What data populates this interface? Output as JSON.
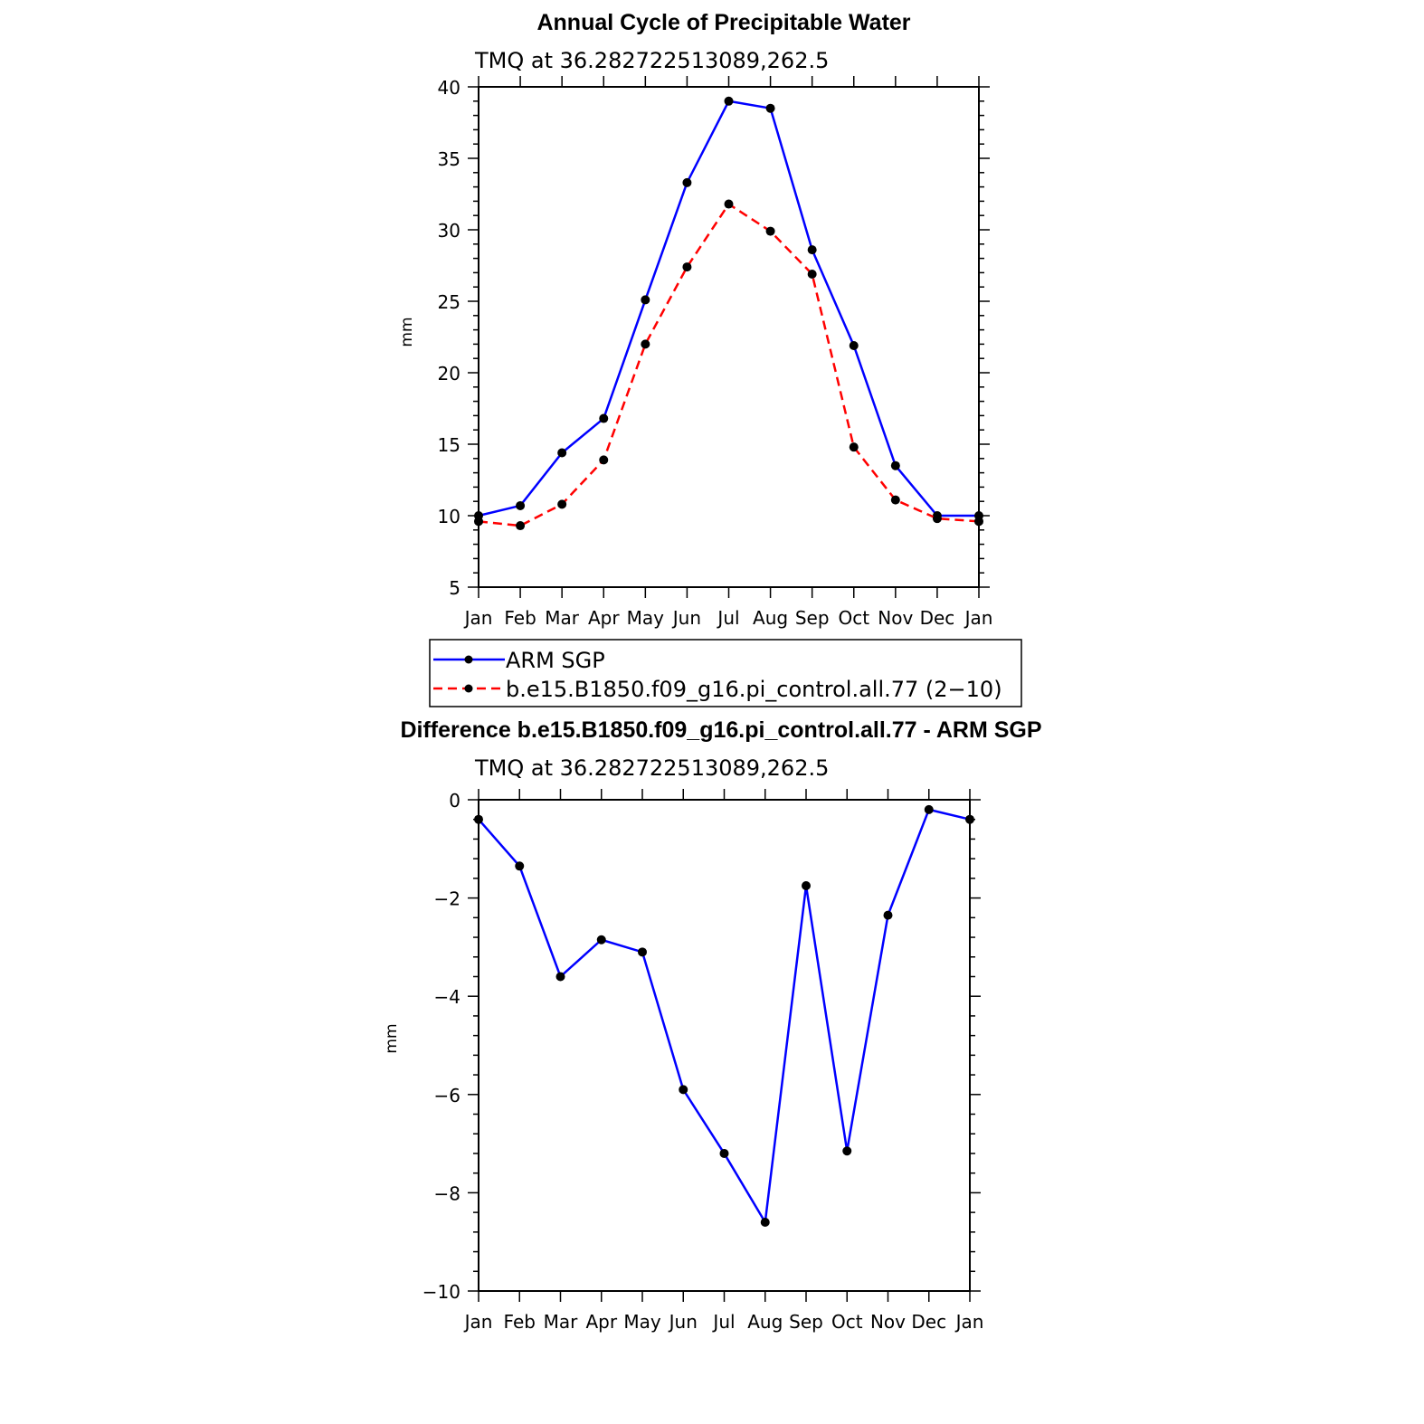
{
  "chart_data": [
    {
      "type": "line",
      "title": "Annual Cycle of Precipitable Water",
      "subtitle": "TMQ at 36.282722513089,262.5",
      "xlabel": "",
      "ylabel": "mm",
      "categories": [
        "Jan",
        "Feb",
        "Mar",
        "Apr",
        "May",
        "Jun",
        "Jul",
        "Aug",
        "Sep",
        "Oct",
        "Nov",
        "Dec",
        "Jan"
      ],
      "ylim": [
        5,
        40
      ],
      "yticks": [
        5,
        10,
        15,
        20,
        25,
        30,
        35,
        40
      ],
      "series": [
        {
          "name": "ARM SGP",
          "color": "#0000ff",
          "dash": "solid",
          "values": [
            10.0,
            10.7,
            14.4,
            16.8,
            25.1,
            33.3,
            39.0,
            38.5,
            28.6,
            21.9,
            13.5,
            10.0,
            10.0
          ]
        },
        {
          "name": "b.e15.B1850.f09_g16.pi_control.all.77 (2−10)",
          "color": "#ff0000",
          "dash": "dashed",
          "values": [
            9.6,
            9.3,
            10.8,
            13.9,
            22.0,
            27.4,
            31.8,
            29.9,
            26.9,
            14.8,
            11.1,
            9.8,
            9.6
          ]
        }
      ],
      "legend": "bottom"
    },
    {
      "type": "line",
      "title": "Difference b.e15.B1850.f09_g16.pi_control.all.77 - ARM SGP",
      "subtitle": "TMQ at 36.282722513089,262.5",
      "xlabel": "",
      "ylabel": "mm",
      "categories": [
        "Jan",
        "Feb",
        "Mar",
        "Apr",
        "May",
        "Jun",
        "Jul",
        "Aug",
        "Sep",
        "Oct",
        "Nov",
        "Dec",
        "Jan"
      ],
      "ylim": [
        -10,
        0
      ],
      "yticks": [
        -10,
        -8,
        -6,
        -4,
        -2,
        0
      ],
      "ytick_labels": [
        "−10",
        "−8",
        "−6",
        "−4",
        "−2",
        "0"
      ],
      "series": [
        {
          "name": "Difference",
          "color": "#0000ff",
          "dash": "solid",
          "values": [
            -0.4,
            -1.35,
            -3.6,
            -2.85,
            -3.1,
            -5.9,
            -7.2,
            -8.6,
            -1.75,
            -7.15,
            -2.35,
            -0.2,
            -0.4
          ]
        }
      ]
    }
  ]
}
